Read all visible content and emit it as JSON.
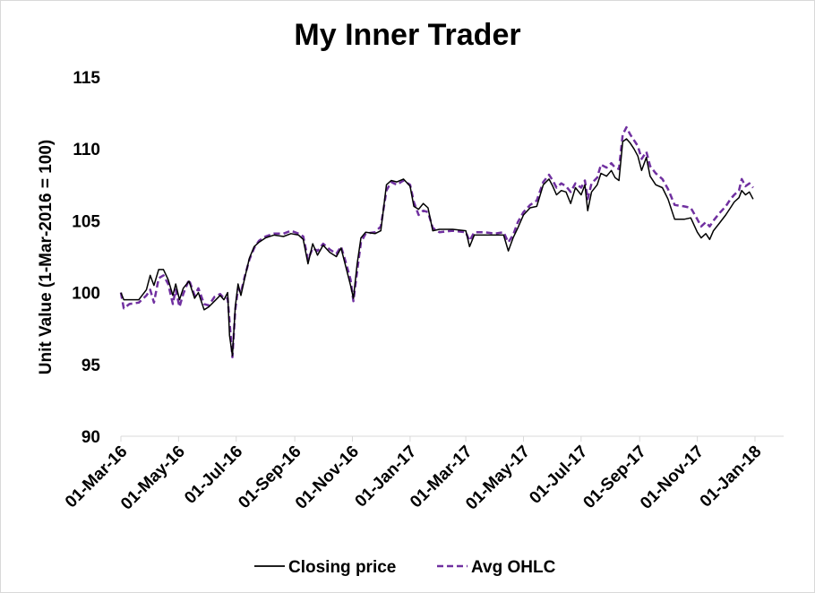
{
  "chart_data": {
    "type": "line",
    "title": "My Inner Trader",
    "xlabel": "",
    "ylabel": "Unit Value (1-Mar-2016 = 100)",
    "ylim": [
      90,
      115
    ],
    "yticks": [
      "90",
      "95",
      "100",
      "105",
      "110",
      "115"
    ],
    "xtick_labels": [
      "01-Mar-16",
      "01-May-16",
      "01-Jul-16",
      "01-Sep-16",
      "01-Nov-16",
      "01-Jan-17",
      "01-Mar-17",
      "01-May-17",
      "01-Jul-17",
      "01-Sep-17",
      "01-Nov-17",
      "01-Jan-18"
    ],
    "xlim": [
      "2016-03-01",
      "2018-01-01"
    ],
    "grid": false,
    "legend_position": "bottom",
    "series": [
      {
        "name": "Closing price",
        "color": "#000000",
        "style": "solid",
        "points": [
          [
            "2016-03-01",
            100.0
          ],
          [
            "2016-03-04",
            99.5
          ],
          [
            "2016-03-10",
            99.5
          ],
          [
            "2016-03-20",
            99.5
          ],
          [
            "2016-03-28",
            100.2
          ],
          [
            "2016-04-01",
            101.2
          ],
          [
            "2016-04-05",
            100.5
          ],
          [
            "2016-04-10",
            101.6
          ],
          [
            "2016-04-15",
            101.6
          ],
          [
            "2016-04-20",
            100.9
          ],
          [
            "2016-04-25",
            99.8
          ],
          [
            "2016-04-28",
            100.6
          ],
          [
            "2016-05-02",
            99.5
          ],
          [
            "2016-05-06",
            100.3
          ],
          [
            "2016-05-12",
            100.8
          ],
          [
            "2016-05-18",
            99.6
          ],
          [
            "2016-05-22",
            100.0
          ],
          [
            "2016-05-28",
            98.8
          ],
          [
            "2016-06-02",
            99.0
          ],
          [
            "2016-06-08",
            99.4
          ],
          [
            "2016-06-14",
            99.8
          ],
          [
            "2016-06-18",
            99.5
          ],
          [
            "2016-06-22",
            100.0
          ],
          [
            "2016-06-24",
            97.0
          ],
          [
            "2016-06-27",
            95.6
          ],
          [
            "2016-06-30",
            99.0
          ],
          [
            "2016-07-03",
            100.6
          ],
          [
            "2016-07-06",
            99.8
          ],
          [
            "2016-07-10",
            101.0
          ],
          [
            "2016-07-15",
            102.4
          ],
          [
            "2016-07-20",
            103.2
          ],
          [
            "2016-07-25",
            103.5
          ],
          [
            "2016-08-01",
            103.8
          ],
          [
            "2016-08-10",
            104.0
          ],
          [
            "2016-08-20",
            103.9
          ],
          [
            "2016-08-28",
            104.1
          ],
          [
            "2016-09-05",
            104.0
          ],
          [
            "2016-09-10",
            103.7
          ],
          [
            "2016-09-15",
            102.0
          ],
          [
            "2016-09-20",
            103.4
          ],
          [
            "2016-09-25",
            102.6
          ],
          [
            "2016-10-01",
            103.3
          ],
          [
            "2016-10-08",
            102.8
          ],
          [
            "2016-10-15",
            102.5
          ],
          [
            "2016-10-20",
            103.1
          ],
          [
            "2016-10-25",
            101.8
          ],
          [
            "2016-10-30",
            100.5
          ],
          [
            "2016-11-02",
            99.6
          ],
          [
            "2016-11-06",
            102.0
          ],
          [
            "2016-11-10",
            103.8
          ],
          [
            "2016-11-15",
            104.2
          ],
          [
            "2016-11-25",
            104.1
          ],
          [
            "2016-12-01",
            104.3
          ],
          [
            "2016-12-07",
            107.5
          ],
          [
            "2016-12-12",
            107.8
          ],
          [
            "2016-12-18",
            107.7
          ],
          [
            "2016-12-25",
            107.9
          ],
          [
            "2017-01-01",
            107.4
          ],
          [
            "2017-01-05",
            106.0
          ],
          [
            "2017-01-10",
            105.8
          ],
          [
            "2017-01-15",
            106.2
          ],
          [
            "2017-01-20",
            105.9
          ],
          [
            "2017-01-25",
            104.3
          ],
          [
            "2017-02-01",
            104.4
          ],
          [
            "2017-02-15",
            104.4
          ],
          [
            "2017-03-01",
            104.3
          ],
          [
            "2017-03-05",
            103.2
          ],
          [
            "2017-03-10",
            104.0
          ],
          [
            "2017-03-20",
            104.0
          ],
          [
            "2017-04-01",
            104.0
          ],
          [
            "2017-04-10",
            104.0
          ],
          [
            "2017-04-15",
            102.9
          ],
          [
            "2017-04-20",
            103.8
          ],
          [
            "2017-04-25",
            104.5
          ],
          [
            "2017-05-01",
            105.4
          ],
          [
            "2017-05-08",
            105.9
          ],
          [
            "2017-05-15",
            106.0
          ],
          [
            "2017-05-22",
            107.5
          ],
          [
            "2017-05-28",
            107.9
          ],
          [
            "2017-06-01",
            107.4
          ],
          [
            "2017-06-05",
            106.8
          ],
          [
            "2017-06-10",
            107.1
          ],
          [
            "2017-06-15",
            107.0
          ],
          [
            "2017-06-20",
            106.2
          ],
          [
            "2017-06-25",
            107.3
          ],
          [
            "2017-07-01",
            106.8
          ],
          [
            "2017-07-05",
            107.5
          ],
          [
            "2017-07-08",
            105.7
          ],
          [
            "2017-07-12",
            107.0
          ],
          [
            "2017-07-18",
            107.5
          ],
          [
            "2017-07-22",
            108.3
          ],
          [
            "2017-07-28",
            108.1
          ],
          [
            "2017-08-02",
            108.5
          ],
          [
            "2017-08-06",
            108.0
          ],
          [
            "2017-08-10",
            107.8
          ],
          [
            "2017-08-14",
            110.5
          ],
          [
            "2017-08-18",
            110.7
          ],
          [
            "2017-08-22",
            110.4
          ],
          [
            "2017-08-26",
            110.0
          ],
          [
            "2017-08-30",
            109.5
          ],
          [
            "2017-09-03",
            108.5
          ],
          [
            "2017-09-08",
            109.4
          ],
          [
            "2017-09-12",
            108.1
          ],
          [
            "2017-09-18",
            107.5
          ],
          [
            "2017-09-25",
            107.3
          ],
          [
            "2017-10-01",
            106.5
          ],
          [
            "2017-10-08",
            105.1
          ],
          [
            "2017-10-18",
            105.1
          ],
          [
            "2017-10-25",
            105.2
          ],
          [
            "2017-11-01",
            104.2
          ],
          [
            "2017-11-05",
            103.8
          ],
          [
            "2017-11-10",
            104.1
          ],
          [
            "2017-11-14",
            103.7
          ],
          [
            "2017-11-18",
            104.3
          ],
          [
            "2017-11-24",
            104.8
          ],
          [
            "2017-12-01",
            105.4
          ],
          [
            "2017-12-06",
            105.9
          ],
          [
            "2017-12-10",
            106.3
          ],
          [
            "2017-12-15",
            106.6
          ],
          [
            "2017-12-18",
            107.1
          ],
          [
            "2017-12-22",
            106.8
          ],
          [
            "2017-12-26",
            107.0
          ],
          [
            "2017-12-30",
            106.5
          ]
        ]
      },
      {
        "name": "Avg OHLC",
        "color": "#7030A0",
        "style": "dashed",
        "points": [
          [
            "2016-03-01",
            100.0
          ],
          [
            "2016-03-04",
            98.9
          ],
          [
            "2016-03-10",
            99.2
          ],
          [
            "2016-03-20",
            99.3
          ],
          [
            "2016-03-28",
            99.8
          ],
          [
            "2016-04-01",
            100.2
          ],
          [
            "2016-04-05",
            99.3
          ],
          [
            "2016-04-10",
            101.0
          ],
          [
            "2016-04-15",
            101.2
          ],
          [
            "2016-04-20",
            100.6
          ],
          [
            "2016-04-25",
            99.2
          ],
          [
            "2016-04-28",
            100.2
          ],
          [
            "2016-05-02",
            99.0
          ],
          [
            "2016-05-06",
            99.9
          ],
          [
            "2016-05-12",
            100.9
          ],
          [
            "2016-05-18",
            99.8
          ],
          [
            "2016-05-22",
            100.3
          ],
          [
            "2016-05-28",
            99.2
          ],
          [
            "2016-06-02",
            99.1
          ],
          [
            "2016-06-08",
            99.7
          ],
          [
            "2016-06-14",
            99.9
          ],
          [
            "2016-06-18",
            99.6
          ],
          [
            "2016-06-22",
            99.6
          ],
          [
            "2016-06-24",
            98.0
          ],
          [
            "2016-06-27",
            95.5
          ],
          [
            "2016-06-30",
            98.8
          ],
          [
            "2016-07-03",
            100.3
          ],
          [
            "2016-07-06",
            100.0
          ],
          [
            "2016-07-10",
            101.1
          ],
          [
            "2016-07-15",
            102.3
          ],
          [
            "2016-07-20",
            103.1
          ],
          [
            "2016-07-25",
            103.6
          ],
          [
            "2016-08-01",
            103.9
          ],
          [
            "2016-08-10",
            104.1
          ],
          [
            "2016-08-20",
            104.1
          ],
          [
            "2016-08-28",
            104.3
          ],
          [
            "2016-09-05",
            104.1
          ],
          [
            "2016-09-10",
            103.9
          ],
          [
            "2016-09-15",
            102.3
          ],
          [
            "2016-09-20",
            103.1
          ],
          [
            "2016-09-25",
            102.9
          ],
          [
            "2016-10-01",
            103.4
          ],
          [
            "2016-10-08",
            103.0
          ],
          [
            "2016-10-15",
            102.7
          ],
          [
            "2016-10-20",
            103.2
          ],
          [
            "2016-10-25",
            102.1
          ],
          [
            "2016-10-30",
            100.9
          ],
          [
            "2016-11-02",
            99.4
          ],
          [
            "2016-11-06",
            101.5
          ],
          [
            "2016-11-10",
            103.5
          ],
          [
            "2016-11-15",
            104.1
          ],
          [
            "2016-11-25",
            104.2
          ],
          [
            "2016-12-01",
            104.6
          ],
          [
            "2016-12-07",
            107.1
          ],
          [
            "2016-12-12",
            107.7
          ],
          [
            "2016-12-18",
            107.5
          ],
          [
            "2016-12-25",
            107.8
          ],
          [
            "2017-01-01",
            107.5
          ],
          [
            "2017-01-05",
            106.3
          ],
          [
            "2017-01-10",
            105.4
          ],
          [
            "2017-01-15",
            105.7
          ],
          [
            "2017-01-20",
            105.6
          ],
          [
            "2017-01-25",
            104.5
          ],
          [
            "2017-02-01",
            104.2
          ],
          [
            "2017-02-15",
            104.3
          ],
          [
            "2017-03-01",
            104.2
          ],
          [
            "2017-03-05",
            103.6
          ],
          [
            "2017-03-10",
            104.2
          ],
          [
            "2017-03-20",
            104.2
          ],
          [
            "2017-04-01",
            104.1
          ],
          [
            "2017-04-10",
            104.2
          ],
          [
            "2017-04-15",
            103.5
          ],
          [
            "2017-04-20",
            104.0
          ],
          [
            "2017-04-25",
            104.9
          ],
          [
            "2017-05-01",
            105.6
          ],
          [
            "2017-05-08",
            106.1
          ],
          [
            "2017-05-15",
            106.4
          ],
          [
            "2017-05-22",
            107.7
          ],
          [
            "2017-05-28",
            108.2
          ],
          [
            "2017-06-01",
            107.8
          ],
          [
            "2017-06-05",
            107.3
          ],
          [
            "2017-06-10",
            107.6
          ],
          [
            "2017-06-15",
            107.4
          ],
          [
            "2017-06-20",
            107.0
          ],
          [
            "2017-06-25",
            107.6
          ],
          [
            "2017-07-01",
            107.3
          ],
          [
            "2017-07-05",
            107.8
          ],
          [
            "2017-07-08",
            106.5
          ],
          [
            "2017-07-12",
            107.6
          ],
          [
            "2017-07-18",
            108.0
          ],
          [
            "2017-07-22",
            108.9
          ],
          [
            "2017-07-28",
            108.7
          ],
          [
            "2017-08-02",
            109.0
          ],
          [
            "2017-08-06",
            108.7
          ],
          [
            "2017-08-10",
            108.6
          ],
          [
            "2017-08-14",
            111.0
          ],
          [
            "2017-08-18",
            111.5
          ],
          [
            "2017-08-22",
            111.0
          ],
          [
            "2017-08-26",
            110.6
          ],
          [
            "2017-08-30",
            110.2
          ],
          [
            "2017-09-03",
            109.3
          ],
          [
            "2017-09-08",
            109.8
          ],
          [
            "2017-09-12",
            108.8
          ],
          [
            "2017-09-18",
            108.3
          ],
          [
            "2017-09-25",
            107.9
          ],
          [
            "2017-10-01",
            107.2
          ],
          [
            "2017-10-08",
            106.1
          ],
          [
            "2017-10-18",
            106.0
          ],
          [
            "2017-10-25",
            105.9
          ],
          [
            "2017-11-01",
            105.1
          ],
          [
            "2017-11-05",
            104.6
          ],
          [
            "2017-11-10",
            104.9
          ],
          [
            "2017-11-14",
            104.6
          ],
          [
            "2017-11-18",
            105.0
          ],
          [
            "2017-11-24",
            105.5
          ],
          [
            "2017-12-01",
            106.0
          ],
          [
            "2017-12-06",
            106.5
          ],
          [
            "2017-12-10",
            106.8
          ],
          [
            "2017-12-15",
            107.1
          ],
          [
            "2017-12-18",
            107.9
          ],
          [
            "2017-12-22",
            107.4
          ],
          [
            "2017-12-26",
            107.6
          ],
          [
            "2017-12-30",
            107.3
          ]
        ]
      }
    ]
  }
}
